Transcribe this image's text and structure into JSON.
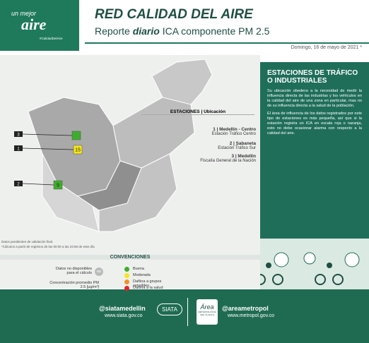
{
  "logo": {
    "line1": "un mejor",
    "line2": "aire",
    "tag": "#CalidadDelAire"
  },
  "header": {
    "title": "RED CALIDAD DEL AIRE",
    "subtitle_start": "Reporte",
    "subtitle_em": "diario",
    "subtitle_end": "ICA componente PM 2.5",
    "date": "Domingo, 16 de mayo de 2021 *"
  },
  "stations": {
    "heading": "ESTACIONES | Ubicación",
    "items": [
      {
        "number": "1",
        "name": "1 | Medellín - Centro",
        "detail": "Estación Tráfico Centro",
        "value": 15,
        "color": "#f5e51c"
      },
      {
        "number": "2",
        "name": "2 | Sabaneta",
        "detail": "Estación Tráfico Sur",
        "value": 9,
        "color": "#3dae2b"
      },
      {
        "number": "3",
        "name": "3 | Medellín",
        "detail": "Fiscalía General de la Nación",
        "value": null,
        "color": "#3dae2b"
      }
    ]
  },
  "notes": [
    "Datos pendientes de validación final.",
    "*Cálculos a partir de registros de las 00:00 a las 23:59 de este día"
  ],
  "conventions": {
    "heading": "CONVENCIONES",
    "nd_label": "Datos no disponibles para el cálculo",
    "nd_icon": "ND",
    "conc_label": "Concentración promedio PM 2.5 [µg/m³]",
    "levels": [
      {
        "label": "Buena",
        "color": "#3dae2b"
      },
      {
        "label": "Moderada",
        "color": "#f5e51c"
      },
      {
        "label": "Dañina a grupos sensibles",
        "color": "#f39224"
      },
      {
        "label": "Dañina a la salud",
        "color": "#e52421"
      }
    ]
  },
  "panel": {
    "title": "ESTACIONES DE TRÁFICO O INDUSTRIALES",
    "paragraphs": [
      "Su ubicación obedece a la necesidad de medir la influencia directa de las industrias y los vehículos en la calidad del aire de una zona en particular, mas no de su influencia directa a la salud de la población.",
      "El área de influencia de los datos registrados por este tipo de estaciones es más pequeña, así que si la estación registra un ICA en escala roja o naranja, esto no debe ocasionar alarma con respecto a la calidad del aire."
    ]
  },
  "footer": {
    "left_handle": "@siatamedellin",
    "left_url": "www.siata.gov.co",
    "left_logo": "SIATA",
    "right_handle": "@areametropol",
    "right_url": "www.metropol.gov.co",
    "right_logo": "Área",
    "right_logo_sub": "METROPOLITANA Valle de Aburrá"
  }
}
